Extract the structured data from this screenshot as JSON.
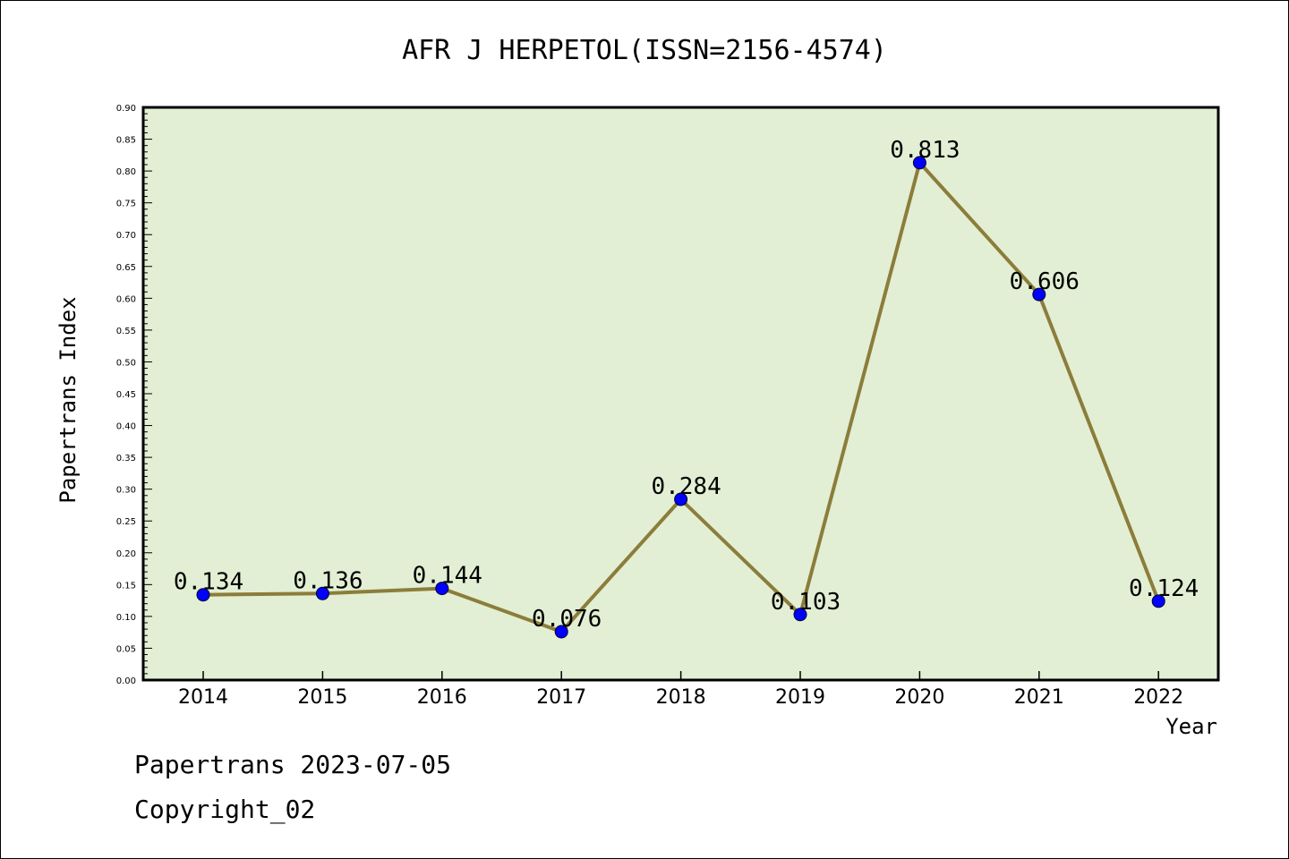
{
  "chart_data": {
    "type": "line",
    "title": "AFR J HERPETOL(ISSN=2156-4574)",
    "xlabel": "Year",
    "ylabel": "Papertrans Index",
    "x": [
      "2014",
      "2015",
      "2016",
      "2017",
      "2018",
      "2019",
      "2020",
      "2021",
      "2022"
    ],
    "series": [
      {
        "values": [
          0.134,
          0.136,
          0.144,
          0.076,
          0.284,
          0.103,
          0.813,
          0.606,
          0.124
        ],
        "data_labels": [
          "0.134",
          "0.136",
          "0.144",
          "0.076",
          "0.284",
          "0.103",
          "0.813",
          "0.606",
          "0.124"
        ]
      }
    ],
    "ylim": [
      0,
      0.9
    ],
    "yticks": [
      "0.00",
      "0.05",
      "0.10",
      "0.15",
      "0.20",
      "0.25",
      "0.30",
      "0.35",
      "0.40",
      "0.45",
      "0.50",
      "0.55",
      "0.60",
      "0.65",
      "0.70",
      "0.75",
      "0.80",
      "0.85",
      "0.90"
    ],
    "grid": false,
    "colors": {
      "plot_background": "#e2efd4",
      "line": "#8b7d3a",
      "marker": "#0000ff"
    }
  },
  "footer": {
    "line1": "Papertrans 2023-07-05",
    "line2": "Copyright_02"
  }
}
